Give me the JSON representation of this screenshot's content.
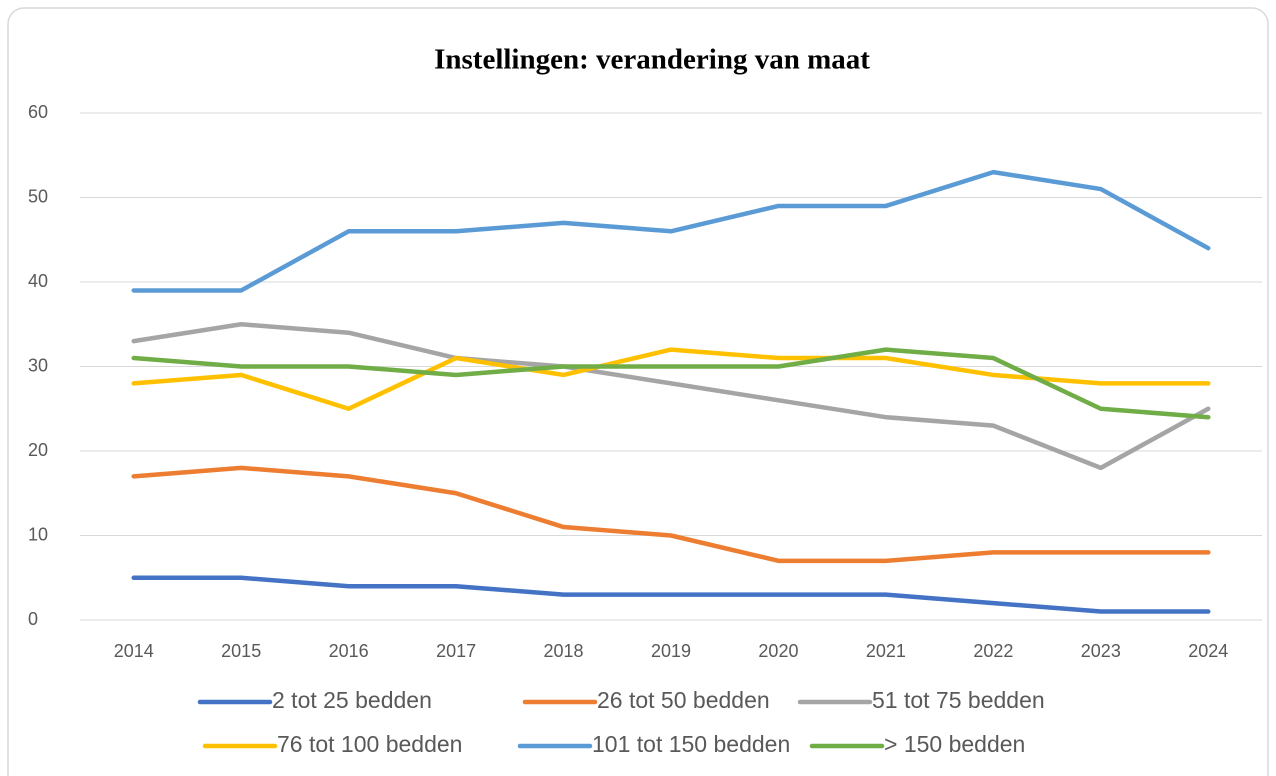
{
  "chart_data": {
    "type": "line",
    "title": "Instellingen: verandering van maat",
    "categories": [
      "2014",
      "2015",
      "2016",
      "2017",
      "2018",
      "2019",
      "2020",
      "2021",
      "2022",
      "2023",
      "2024"
    ],
    "series": [
      {
        "name": "2 tot 25 bedden",
        "color": "#4472c4",
        "values": [
          5,
          5,
          4,
          4,
          3,
          3,
          3,
          3,
          2,
          1,
          1
        ]
      },
      {
        "name": "26 tot 50 bedden",
        "color": "#ed7d31",
        "values": [
          17,
          18,
          17,
          15,
          11,
          10,
          7,
          7,
          8,
          8,
          8
        ]
      },
      {
        "name": "51 tot 75 bedden",
        "color": "#a5a5a5",
        "values": [
          33,
          35,
          34,
          31,
          30,
          28,
          26,
          24,
          23,
          18,
          25
        ]
      },
      {
        "name": "76 tot 100 bedden",
        "color": "#ffc000",
        "values": [
          28,
          29,
          25,
          31,
          29,
          32,
          31,
          31,
          29,
          28,
          28
        ]
      },
      {
        "name": "101 tot 150 bedden",
        "color": "#5b9bd5",
        "values": [
          39,
          39,
          46,
          46,
          47,
          46,
          49,
          49,
          53,
          51,
          44
        ]
      },
      {
        "name": "> 150 bedden",
        "color": "#70ad47",
        "values": [
          31,
          30,
          30,
          29,
          30,
          30,
          30,
          32,
          31,
          25,
          24
        ]
      }
    ],
    "ylim": [
      0,
      60
    ],
    "yticks": [
      0,
      10,
      20,
      30,
      40,
      50,
      60
    ],
    "grid": true,
    "legend": "bottom"
  }
}
